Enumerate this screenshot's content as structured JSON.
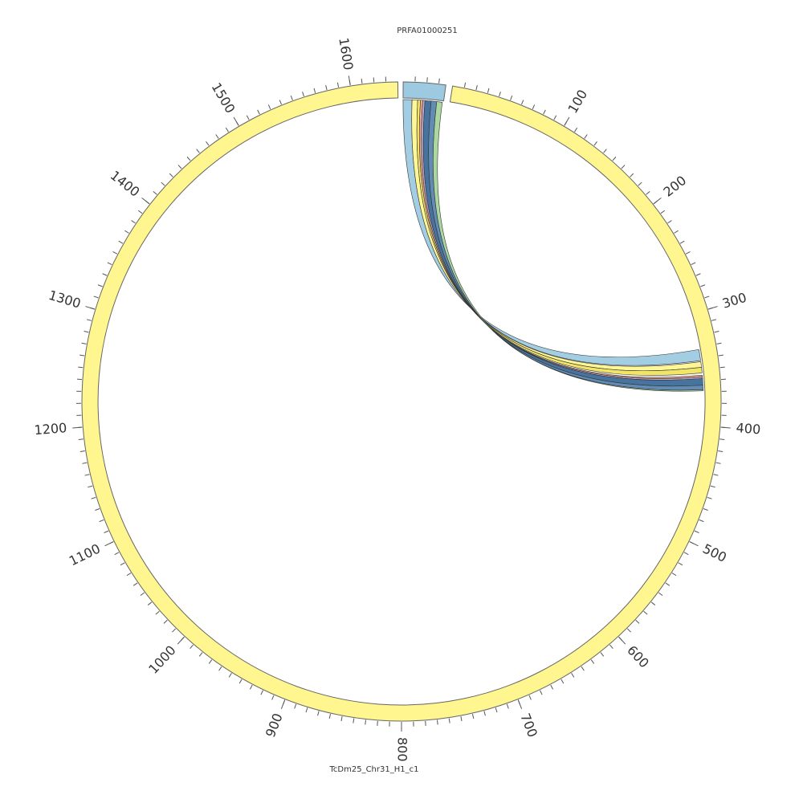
{
  "chart_data": {
    "type": "chord",
    "segments": [
      {
        "name": "PRFA01000251",
        "length": 36,
        "color": "#9ecae1"
      },
      {
        "name": "TcDm25_Chr31_H1_c1",
        "length": 1640,
        "color": "#fff68f",
        "ticks": [
          100,
          200,
          300,
          400,
          500,
          600,
          700,
          800,
          900,
          1000,
          1100,
          1200,
          1300,
          1400,
          1500,
          1600
        ]
      }
    ],
    "minor_tick_step": 10,
    "links": [
      {
        "source": [
          0,
          8
        ],
        "target": [
          332,
          342
        ],
        "color": "#9ecae1"
      },
      {
        "source": [
          8,
          13
        ],
        "target": [
          343,
          348
        ],
        "color": "#fff68f"
      },
      {
        "source": [
          13,
          15.5
        ],
        "target": [
          348,
          353
        ],
        "color": "#f0e460"
      },
      {
        "source": [
          15.5,
          17.5
        ],
        "target": [
          355,
          356.5
        ],
        "color": "#f4a582"
      },
      {
        "source": [
          17.5,
          19.5
        ],
        "target": [
          356.5,
          358
        ],
        "color": "#b8a3d0"
      },
      {
        "source": [
          19.5,
          25
        ],
        "target": [
          358,
          364
        ],
        "color": "#3d6d99"
      },
      {
        "source": [
          25,
          30
        ],
        "target": [
          364,
          368
        ],
        "color": "#5a86b0"
      },
      {
        "source": [
          30,
          35
        ],
        "target": [
          368,
          369
        ],
        "color": "#a6d69a"
      }
    ]
  }
}
